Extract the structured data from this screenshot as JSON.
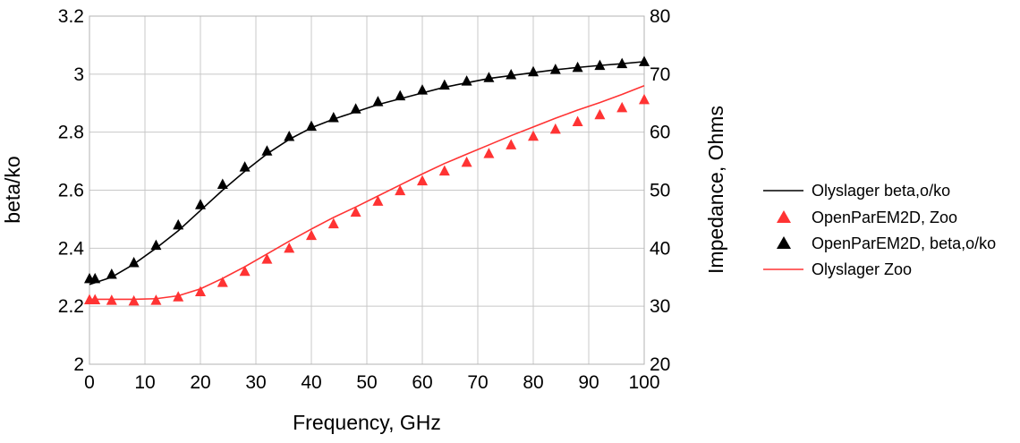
{
  "chart_data": {
    "type": "line",
    "title": "",
    "xlabel": "Frequency, GHz",
    "ylabel": "beta/ko",
    "y2label": "Impedance, Ohms",
    "xlim": [
      0,
      100
    ],
    "ylim": [
      2,
      3.2
    ],
    "y2lim": [
      20,
      80
    ],
    "xticks": [
      "0",
      "10",
      "20",
      "30",
      "40",
      "50",
      "60",
      "70",
      "80",
      "90",
      "100"
    ],
    "yticks": [
      "2",
      "2.2",
      "2.4",
      "2.6",
      "2.8",
      "3",
      "3.2"
    ],
    "y2ticks": [
      "20",
      "30",
      "40",
      "50",
      "60",
      "70",
      "80"
    ],
    "grid": true,
    "legend_position": "right",
    "series": [
      {
        "name": "Olyslager beta,o/ko",
        "kind": "line",
        "axis": "left",
        "color": "#000000",
        "x": [
          0,
          4,
          8,
          12,
          16,
          20,
          24,
          28,
          32,
          36,
          40,
          44,
          48,
          52,
          56,
          60,
          64,
          68,
          72,
          76,
          80,
          84,
          88,
          92,
          96,
          100
        ],
        "y": [
          2.275,
          2.3,
          2.345,
          2.4,
          2.46,
          2.53,
          2.6,
          2.665,
          2.725,
          2.775,
          2.815,
          2.845,
          2.87,
          2.895,
          2.915,
          2.935,
          2.955,
          2.97,
          2.985,
          2.995,
          3.005,
          3.015,
          3.023,
          3.03,
          3.036,
          3.043
        ]
      },
      {
        "name": "OpenParEM2D, Zoo",
        "kind": "marker",
        "axis": "right",
        "color": "#ff3333",
        "x": [
          0,
          1,
          4,
          8,
          12,
          16,
          20,
          24,
          28,
          32,
          36,
          40,
          44,
          48,
          52,
          56,
          60,
          64,
          68,
          72,
          76,
          80,
          84,
          88,
          92,
          96,
          100
        ],
        "y": [
          31.1,
          31.1,
          31.0,
          30.9,
          31.0,
          31.6,
          32.5,
          34.1,
          36.0,
          38.1,
          40.0,
          42.2,
          44.2,
          46.2,
          48.1,
          49.9,
          51.6,
          53.3,
          54.8,
          56.3,
          57.8,
          59.3,
          60.5,
          61.8,
          63.0,
          64.2,
          65.6
        ]
      },
      {
        "name": "OpenParEM2D, beta,o/ko",
        "kind": "marker",
        "axis": "left",
        "color": "#000000",
        "x": [
          0,
          1,
          4,
          8,
          12,
          16,
          20,
          24,
          28,
          32,
          36,
          40,
          44,
          48,
          52,
          56,
          60,
          64,
          68,
          72,
          76,
          80,
          84,
          88,
          92,
          96,
          100
        ],
        "y": [
          2.295,
          2.295,
          2.31,
          2.35,
          2.41,
          2.48,
          2.55,
          2.62,
          2.68,
          2.735,
          2.785,
          2.82,
          2.85,
          2.88,
          2.905,
          2.925,
          2.945,
          2.962,
          2.976,
          2.988,
          2.998,
          3.008,
          3.016,
          3.023,
          3.03,
          3.036,
          3.043
        ]
      },
      {
        "name": "Olyslager Zoo",
        "kind": "line",
        "axis": "right",
        "color": "#ff3333",
        "x": [
          0,
          4,
          8,
          12,
          16,
          20,
          24,
          28,
          32,
          36,
          40,
          44,
          48,
          52,
          56,
          60,
          64,
          68,
          72,
          76,
          80,
          84,
          88,
          92,
          96,
          100
        ],
        "y": [
          31.2,
          31.2,
          31.2,
          31.3,
          31.8,
          33.0,
          34.8,
          36.8,
          39.0,
          41.2,
          43.3,
          45.3,
          47.1,
          49.0,
          50.9,
          52.8,
          54.6,
          56.2,
          57.8,
          59.4,
          60.9,
          62.4,
          63.8,
          65.1,
          66.5,
          68.0
        ]
      }
    ]
  }
}
